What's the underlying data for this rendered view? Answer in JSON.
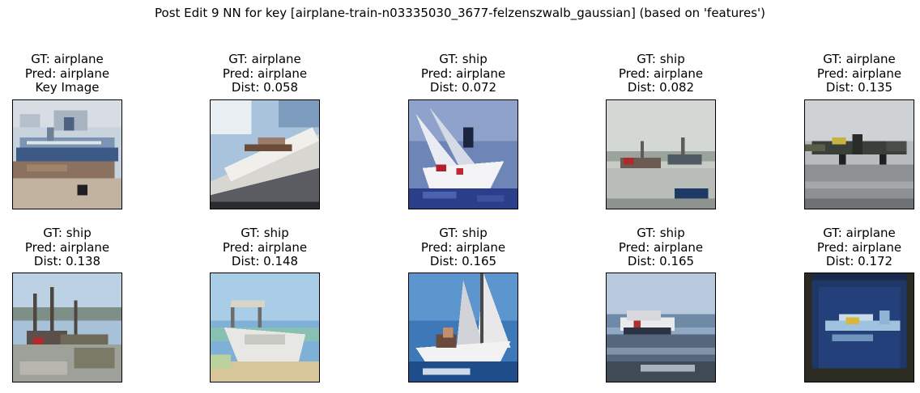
{
  "figure": {
    "title": "Post Edit 9 NN for key [airplane-train-n03335030_3677-felzenszwalb_gaussian] (based on 'features')"
  },
  "panels": [
    {
      "gt": "GT: airplane",
      "pred": "Pred: airplane",
      "extra": "Key Image",
      "scene": "boat-on-shore"
    },
    {
      "gt": "GT: airplane",
      "pred": "Pred: airplane",
      "extra": "Dist: 0.058",
      "scene": "yacht-deck"
    },
    {
      "gt": "GT: ship",
      "pred": "Pred: airplane",
      "extra": "Dist: 0.072",
      "scene": "sailboat-heeling"
    },
    {
      "gt": "GT: ship",
      "pred": "Pred: airplane",
      "extra": "Dist: 0.082",
      "scene": "harbor-boats"
    },
    {
      "gt": "GT: airplane",
      "pred": "Pred: airplane",
      "extra": "Dist: 0.135",
      "scene": "propeller-plane"
    },
    {
      "gt": "GT: ship",
      "pred": "Pred: airplane",
      "extra": "Dist: 0.138",
      "scene": "harbor-dock"
    },
    {
      "gt": "GT: ship",
      "pred": "Pred: airplane",
      "extra": "Dist: 0.148",
      "scene": "white-boat-beach"
    },
    {
      "gt": "GT: ship",
      "pred": "Pred: airplane",
      "extra": "Dist: 0.165",
      "scene": "sailboat-crew"
    },
    {
      "gt": "GT: ship",
      "pred": "Pred: airplane",
      "extra": "Dist: 0.165",
      "scene": "ferry-sea"
    },
    {
      "gt": "GT: airplane",
      "pred": "Pred: airplane",
      "extra": "Dist: 0.172",
      "scene": "model-plane-blue"
    }
  ]
}
